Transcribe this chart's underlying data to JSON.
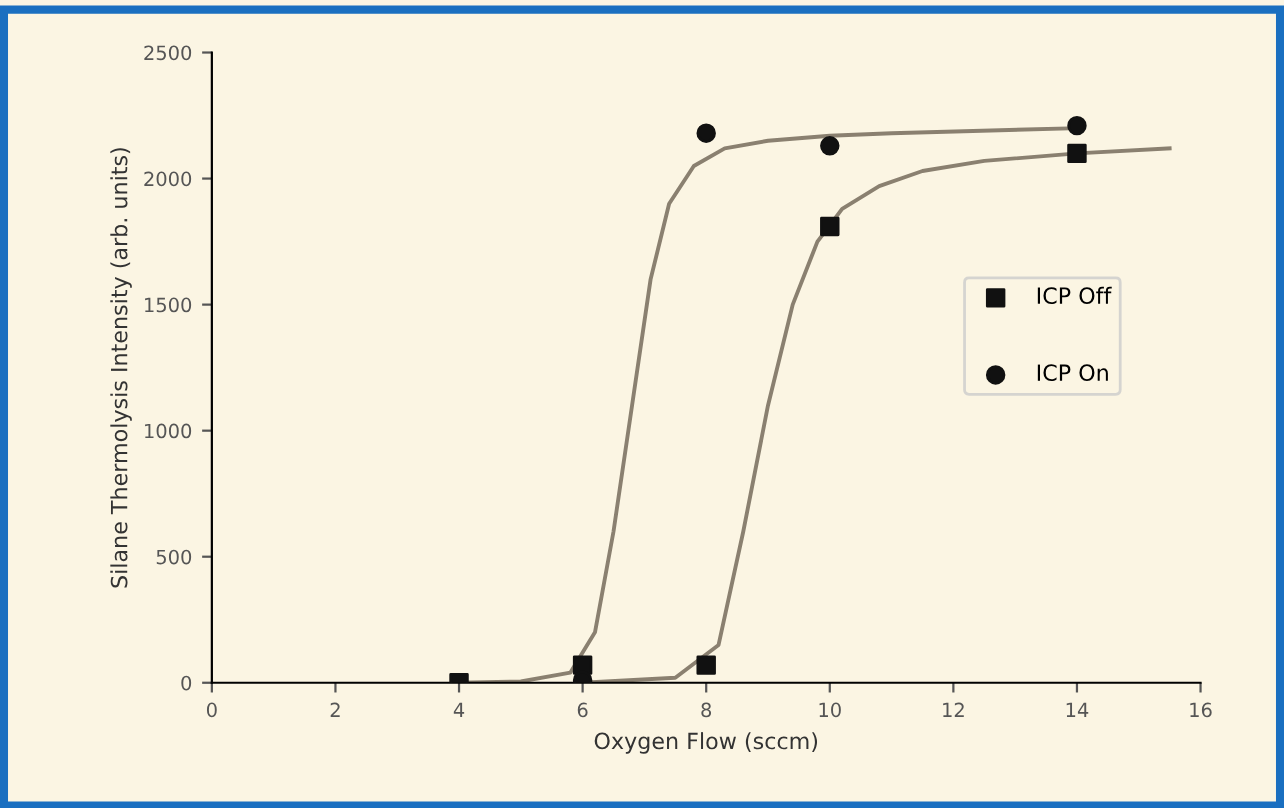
{
  "chart_data": {
    "type": "scatter",
    "xlabel": "Oxygen Flow (sccm)",
    "ylabel": "Silane Thermolysis Intensity (arb. units)",
    "xlim": [
      0,
      16
    ],
    "xticks": [
      0,
      2,
      4,
      6,
      8,
      10,
      12,
      14,
      16
    ],
    "ylim": [
      0,
      2500
    ],
    "yticks": [
      0,
      500,
      1000,
      1500,
      2000,
      2500
    ],
    "grid": false,
    "legend": "right",
    "series": [
      {
        "name": "ICP Off",
        "marker": "square",
        "color": "#111111",
        "x": [
          4,
          6,
          8,
          10,
          14
        ],
        "values": [
          0,
          70,
          70,
          1810,
          2100
        ]
      },
      {
        "name": "ICP On",
        "marker": "circle",
        "color": "#111111",
        "x": [
          6,
          8,
          10,
          14
        ],
        "values": [
          10,
          2180,
          2130,
          2210
        ]
      },
      {
        "type": "line",
        "marker": "none",
        "color": "#8a8070",
        "x": [
          4,
          5,
          5.8,
          6.2,
          6.5,
          6.8,
          7.1,
          7.4,
          7.8,
          8.3,
          9,
          10,
          11,
          14
        ],
        "values": [
          0,
          5,
          40,
          200,
          600,
          1100,
          1600,
          1900,
          2050,
          2120,
          2150,
          2170,
          2180,
          2200
        ]
      },
      {
        "type": "line",
        "marker": "none",
        "color": "#8a8070",
        "x": [
          6,
          7.5,
          8.2,
          8.6,
          9,
          9.4,
          9.8,
          10.2,
          10.8,
          11.5,
          12.5,
          14,
          15.5
        ],
        "values": [
          0,
          20,
          150,
          600,
          1100,
          1500,
          1750,
          1880,
          1970,
          2030,
          2070,
          2100,
          2120
        ]
      }
    ]
  }
}
